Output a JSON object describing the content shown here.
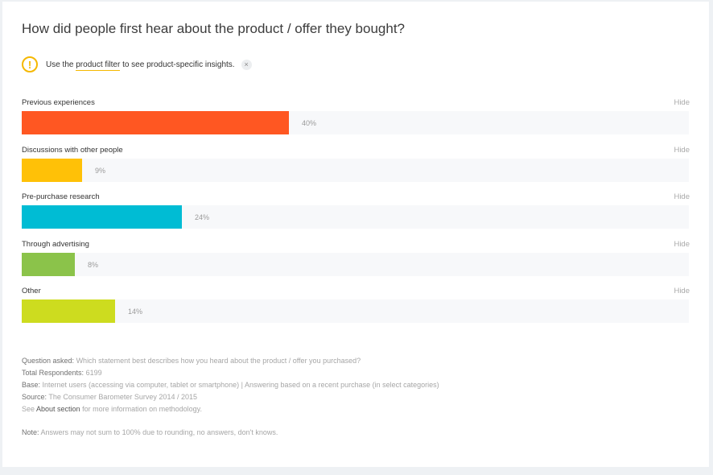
{
  "title": "How did people first hear about the product / offer they bought?",
  "notice": {
    "prefix": "Use the",
    "link": "product filter",
    "suffix": "to see product-specific insights.",
    "icon": "warning-icon",
    "dismiss_glyph": "×"
  },
  "hide_label": "Hide",
  "chart_data": {
    "type": "bar",
    "orientation": "horizontal",
    "categories": [
      "Previous experiences",
      "Discussions with other people",
      "Pre-purchase research",
      "Through advertising",
      "Other"
    ],
    "values": [
      40,
      9,
      24,
      8,
      14
    ],
    "value_labels": [
      "40%",
      "9%",
      "24%",
      "8%",
      "14%"
    ],
    "colors": [
      "#ff5722",
      "#ffc107",
      "#00bcd4",
      "#8bc34a",
      "#cddc1f"
    ],
    "xlim": [
      0,
      100
    ],
    "title": "How did people first hear about the product / offer they bought?",
    "xlabel": "",
    "ylabel": ""
  },
  "footer": {
    "question_key": "Question asked:",
    "question_val": "Which statement best describes how you heard about the product / offer you purchased?",
    "respondents_key": "Total Respondents:",
    "respondents_val": "6199",
    "base_key": "Base:",
    "base_val": "Internet users (accessing via computer, tablet or smartphone) | Answering based on a recent purchase (in select categories)",
    "source_key": "Source:",
    "source_val": "The Consumer Barometer Survey 2014 / 2015",
    "see_prefix": "See",
    "see_link": "About section",
    "see_suffix": "for more information on methodology.",
    "note_key": "Note:",
    "note_val": "Answers may not sum to 100% due to rounding, no answers, don't knows."
  }
}
